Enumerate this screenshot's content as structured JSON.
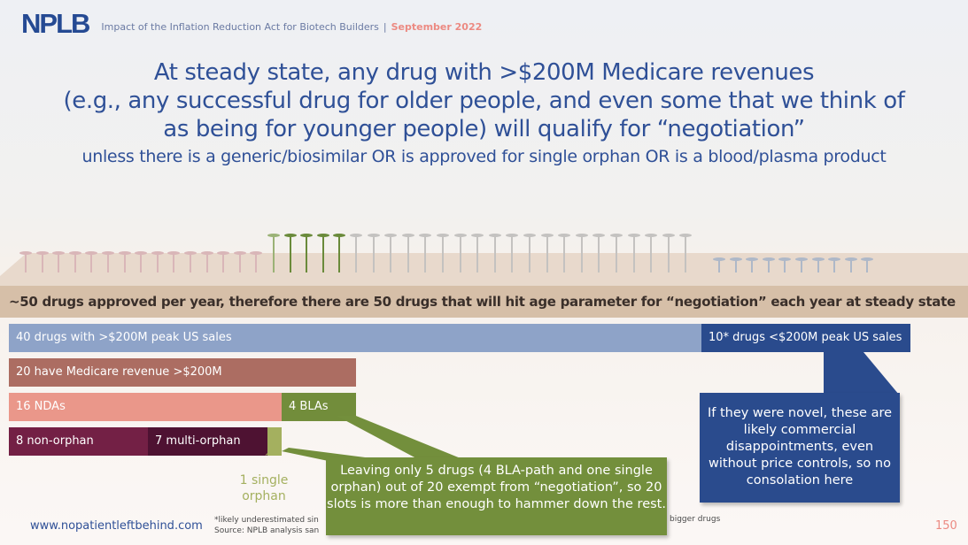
{
  "header": {
    "logo": "NPLB",
    "subtitle": "Impact of the Inflation Reduction Act for Biotech Builders",
    "separator": "|",
    "date": "September 2022"
  },
  "headline": {
    "line1": "At steady state, any drug with >$200M Medicare revenues",
    "line2": "(e.g., any successful drug for older people, and even some that we think of",
    "line3": "as being for younger people) will qualify for “negotiation”",
    "subline": "unless there is a generic/biosimilar OR is approved for single orphan OR is a blood/plasma product"
  },
  "pins": {
    "groups": [
      {
        "name": "medicare-non-exempt",
        "count": 15,
        "color": "#d9b6b8",
        "tall": false
      },
      {
        "name": "exempt",
        "count": 5,
        "color": "#6a8a3a",
        "tall": true
      },
      {
        "name": "other-over-200m",
        "count": 20,
        "color": "#c4c2c0",
        "tall": true
      },
      {
        "name": "under-200m",
        "count": 10,
        "color": "#aeb8c8",
        "tall": false
      }
    ]
  },
  "band": {
    "text": "~50 drugs approved per year, therefore there are 50 drugs that will hit age parameter for “negotiation” each year at steady state"
  },
  "bars": {
    "over_200m": "40 drugs with >$200M peak US sales",
    "under_200m": "10* drugs <$200M peak US sales",
    "medicare": "20 have Medicare revenue >$200M",
    "ndas": "16 NDAs",
    "blas": "4 BLAs",
    "non_orphan": "8 non-orphan",
    "multi_orphan": "7 multi-orphan",
    "single_orphan": "1 single orphan"
  },
  "callouts": {
    "green": "Leaving only 5 drugs (4 BLA-path and one single orphan) out of 20 exempt from “negotiation”, so 20 slots is more than enough to hammer down the rest.",
    "blue": "If they were novel, these are likely commercial disappointments, even without price controls, so no consolation here"
  },
  "footer": {
    "url": "www.nopatientleftbehind.com",
    "footnote1": "*likely underestimated sin",
    "footnote2": "Source: NPLB analysis san",
    "footnote_right": "bigger drugs",
    "page": "150"
  },
  "colors": {
    "brand_blue": "#2a4b8d",
    "accent_pink": "#ec8a82",
    "green": "#738f3c"
  }
}
